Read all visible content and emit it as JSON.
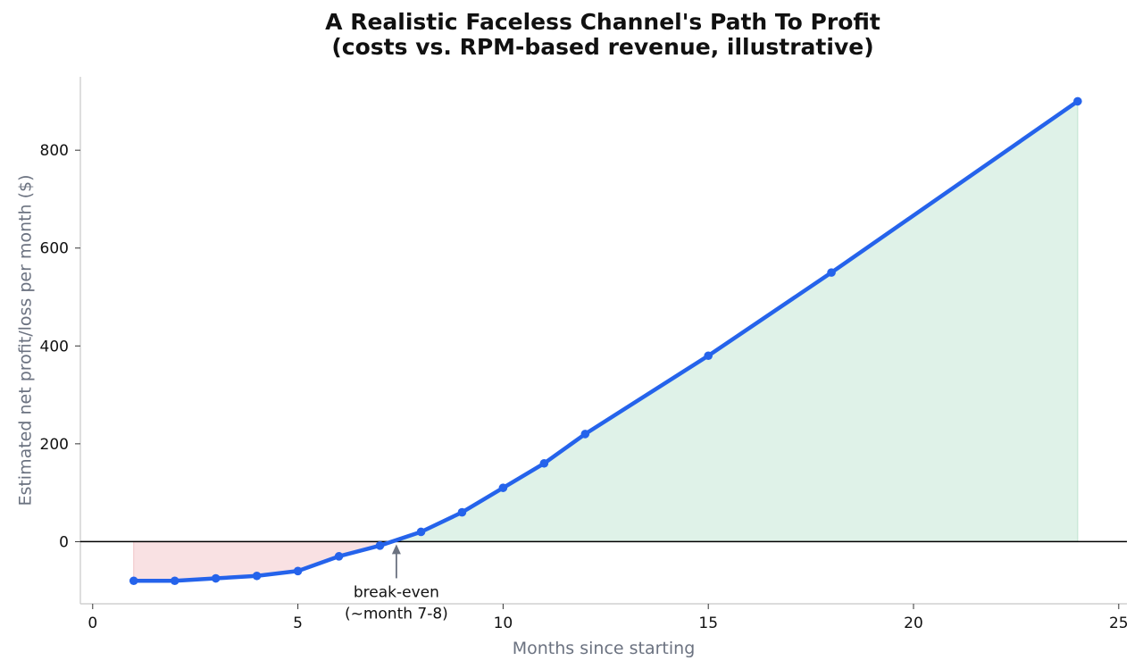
{
  "chart_data": {
    "type": "line",
    "title_line1": "A Realistic Faceless Channel's Path To Profit",
    "title_line2": "(costs vs. RPM-based revenue, illustrative)",
    "xlabel": "Months since starting",
    "ylabel": "Estimated net profit/loss per month ($)",
    "xlim": [
      -0.3,
      25.2
    ],
    "ylim": [
      -127,
      950
    ],
    "xticks": [
      0,
      5,
      10,
      15,
      20,
      25
    ],
    "yticks": [
      0,
      200,
      400,
      600,
      800
    ],
    "grid": false,
    "series": [
      {
        "x": [
          1,
          2,
          3,
          4,
          5,
          6,
          7,
          8,
          9,
          10,
          11,
          12,
          15,
          18,
          24
        ],
        "y": [
          -80,
          -80,
          -75,
          -70,
          -60,
          -30,
          -8,
          20,
          60,
          110,
          160,
          220,
          380,
          550,
          900
        ]
      }
    ],
    "baseline": 0,
    "fill_negative": true,
    "fill_positive": true,
    "annotation": {
      "line1": "break-even",
      "line2": "(~month 7-8)",
      "x": 7.4,
      "y": 0
    },
    "colors": {
      "line": "#2563eb",
      "fill_negative": "#f9e1e3",
      "fill_negative_edge": "#f0c3c7",
      "fill_positive": "#dff2e8",
      "fill_positive_edge": "#bfe3cf",
      "zero_line": "#000000",
      "axis": "#c8c8c8",
      "arrow": "#6b7280"
    }
  }
}
